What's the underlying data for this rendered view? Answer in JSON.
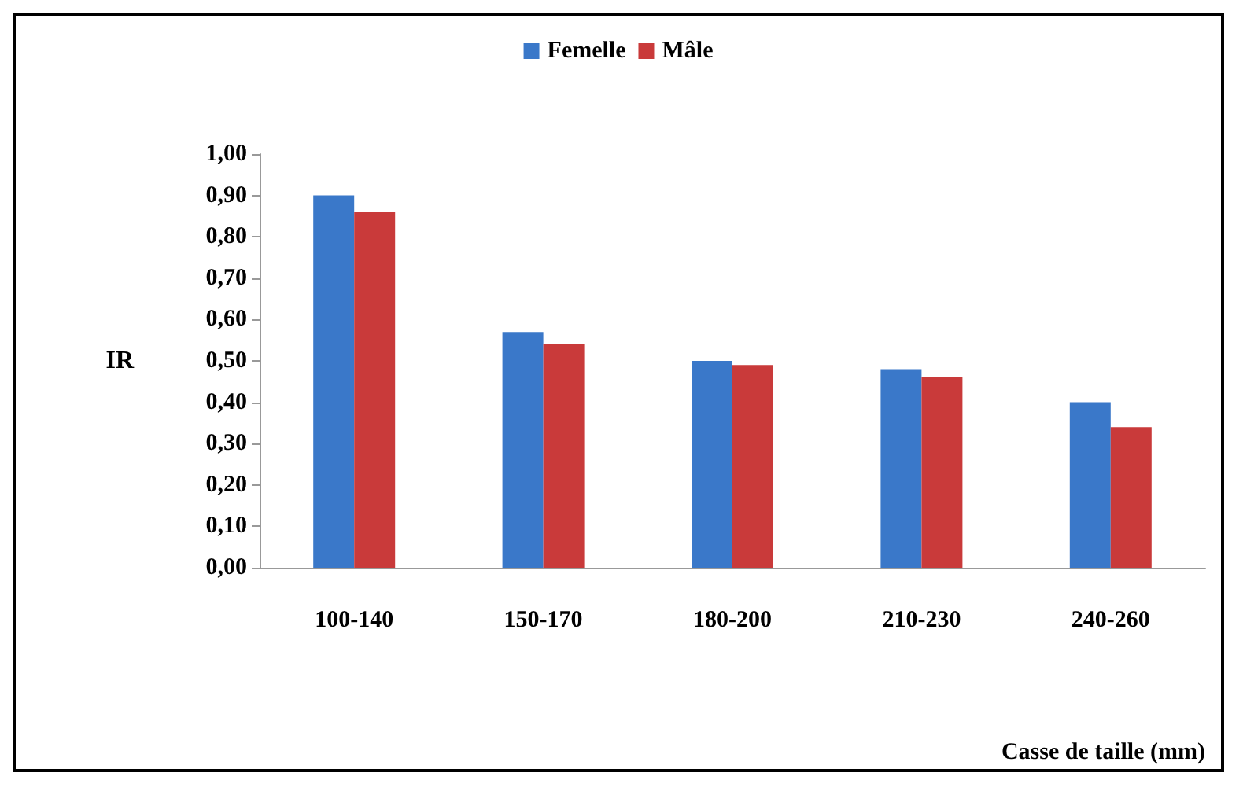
{
  "chart_data": {
    "type": "bar",
    "xlabel": "Casse de taille (mm)",
    "ylabel": "IR",
    "categories": [
      "100-140",
      "150-170",
      "180-200",
      "210-230",
      "240-260"
    ],
    "series": [
      {
        "name": "Femelle",
        "color": "#3a78c9",
        "values": [
          0.9,
          0.57,
          0.5,
          0.48,
          0.4
        ]
      },
      {
        "name": "Mâle",
        "color": "#c93a3a",
        "values": [
          0.86,
          0.54,
          0.49,
          0.46,
          0.34
        ]
      }
    ],
    "ylim": [
      0,
      1
    ],
    "yticks": [
      {
        "value": 0,
        "label": "0,00"
      },
      {
        "value": 0.1,
        "label": "0,10"
      },
      {
        "value": 0.2,
        "label": "0,20"
      },
      {
        "value": 0.3,
        "label": "0,30"
      },
      {
        "value": 0.4,
        "label": "0,40"
      },
      {
        "value": 0.5,
        "label": "0,50"
      },
      {
        "value": 0.6,
        "label": "0,60"
      },
      {
        "value": 0.7,
        "label": "0,70"
      },
      {
        "value": 0.8,
        "label": "0,80"
      },
      {
        "value": 0.9,
        "label": "0,90"
      },
      {
        "value": 1,
        "label": "1,00"
      }
    ],
    "grid": false,
    "legend": "top"
  }
}
